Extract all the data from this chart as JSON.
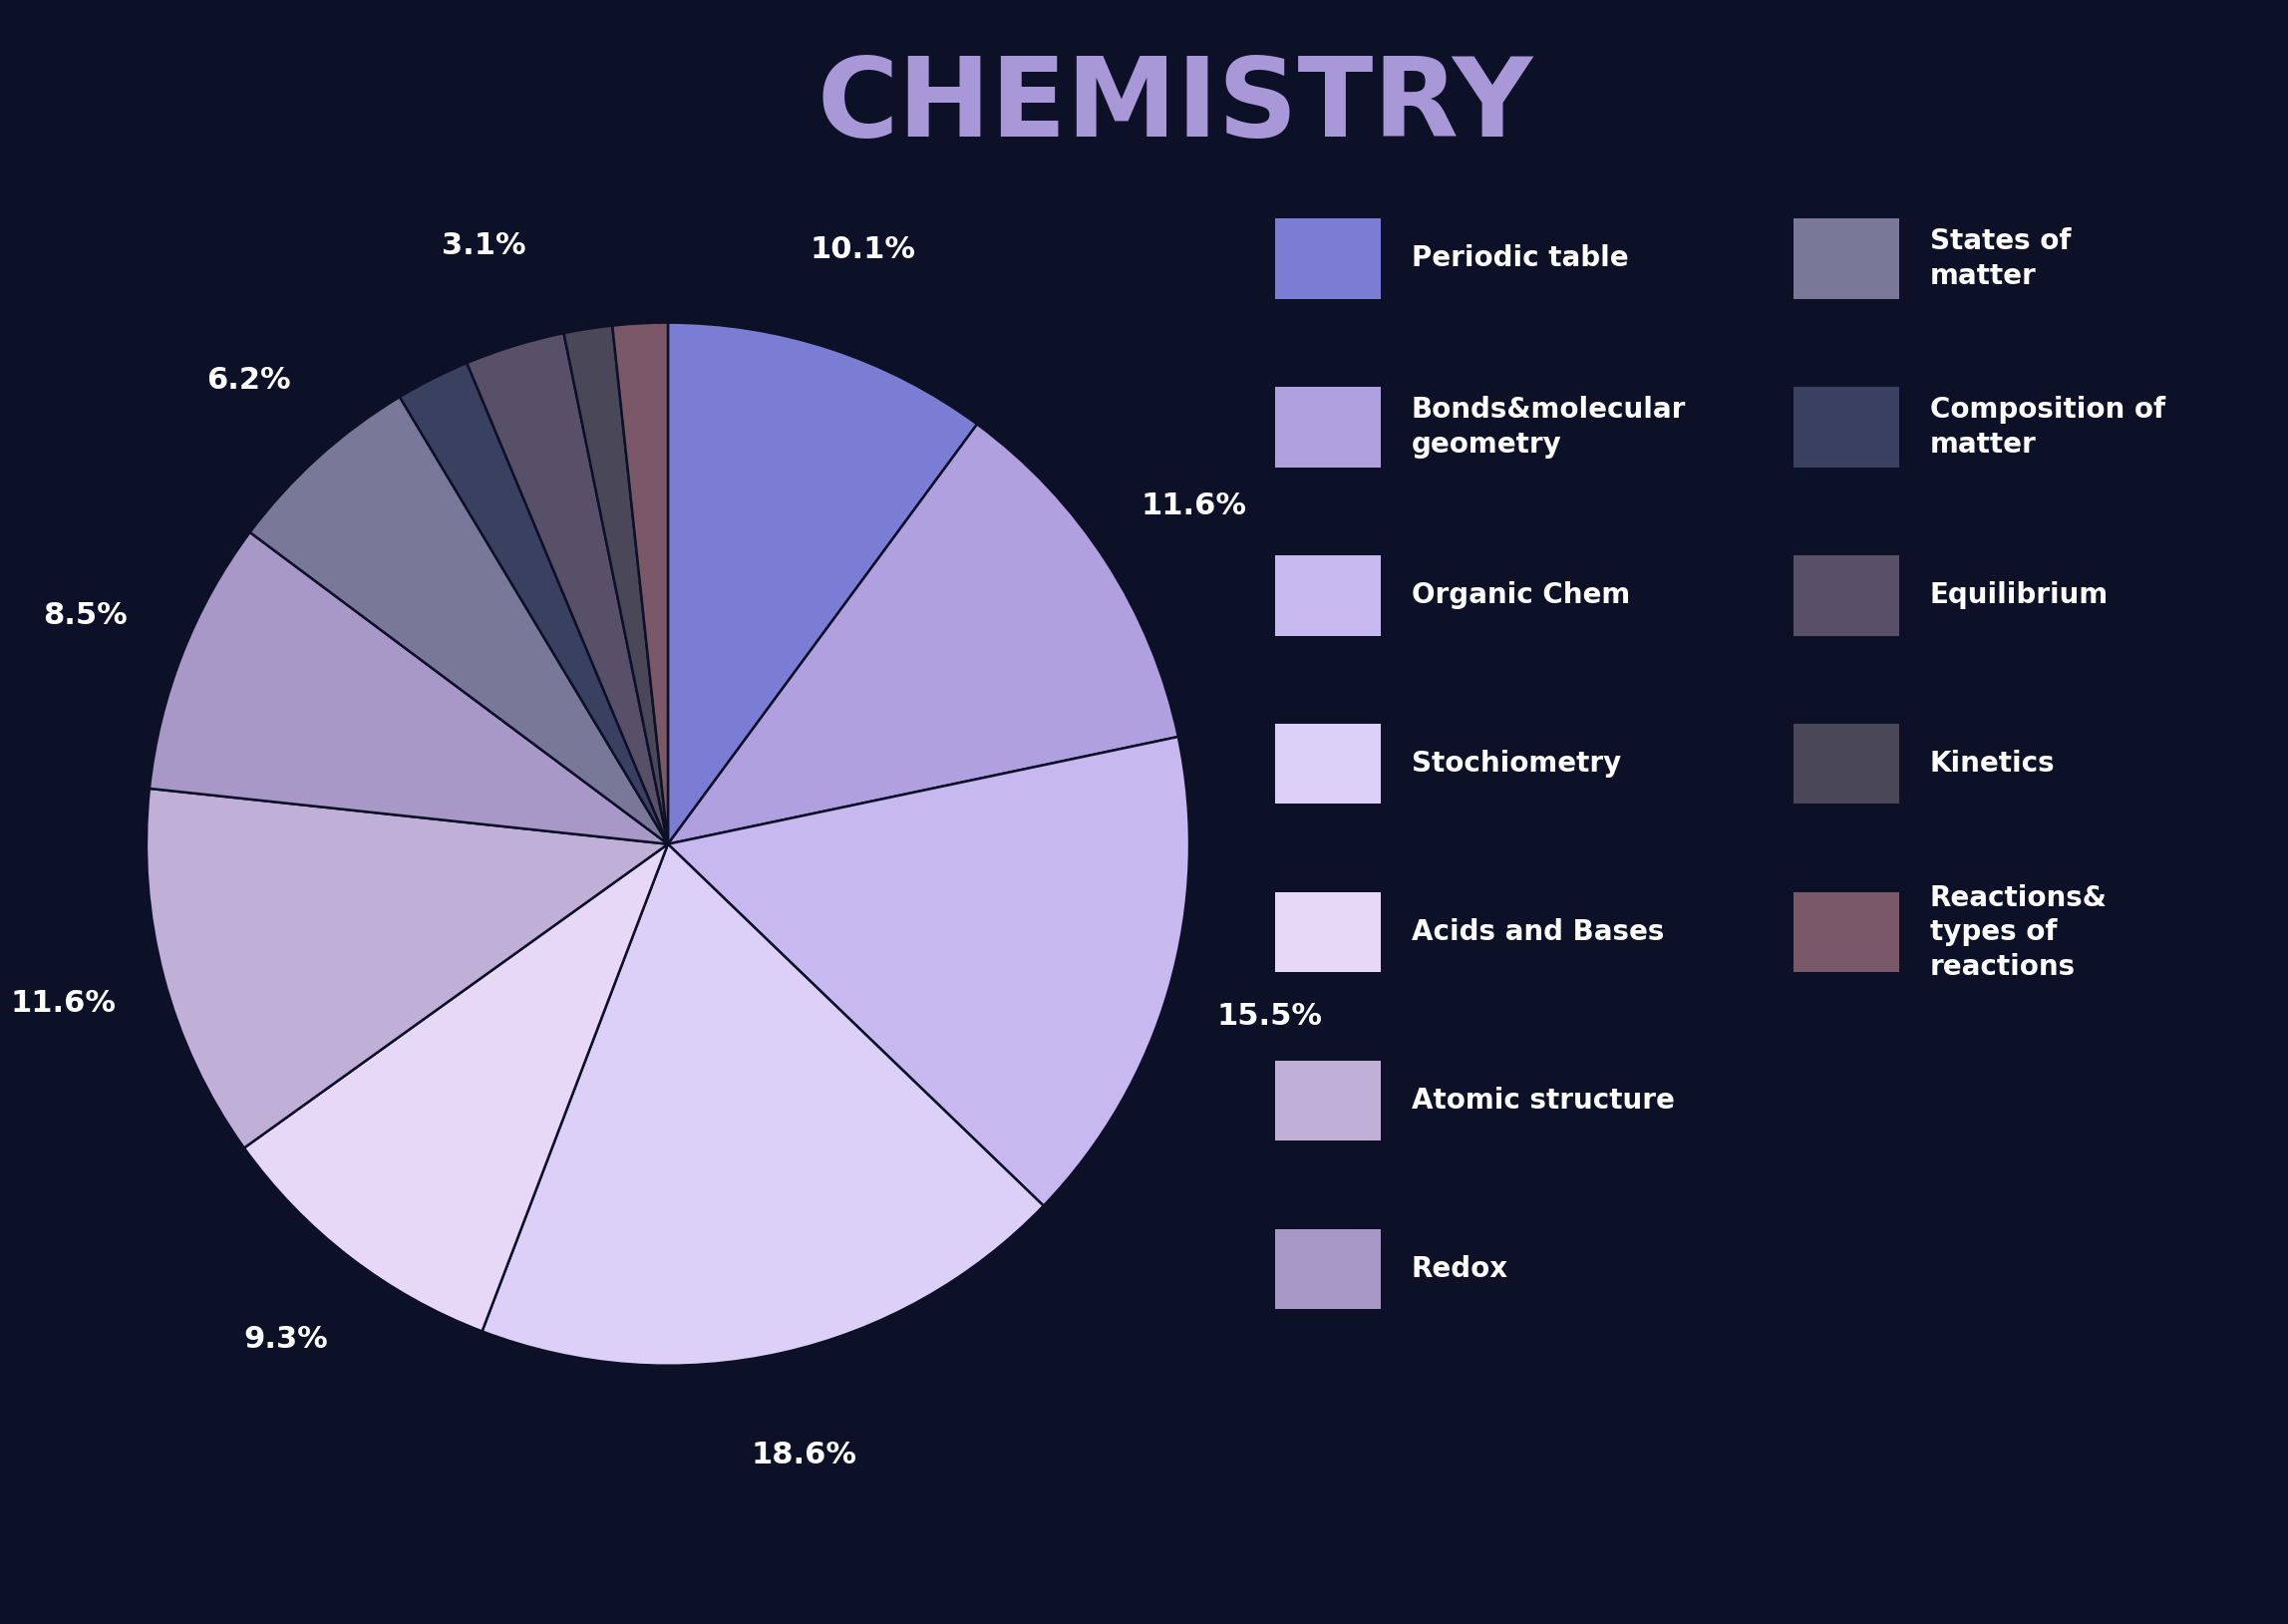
{
  "title": "CHEMISTRY",
  "background_color": "#0d1128",
  "title_color": "#a898d8",
  "slices": [
    {
      "label": "Periodic table",
      "pct": 10.1,
      "color": "#7b7dd4"
    },
    {
      "label": "Bonds&molecular geometry",
      "pct": 11.6,
      "color": "#b0a0e0"
    },
    {
      "label": "Organic Chem",
      "pct": 15.5,
      "color": "#c8b8f0"
    },
    {
      "label": "Stochiometry",
      "pct": 18.6,
      "color": "#ddd0f8"
    },
    {
      "label": "Acids and Bases",
      "pct": 9.3,
      "color": "#e8d8f8"
    },
    {
      "label": "Atomic structure",
      "pct": 11.6,
      "color": "#c0b0d8"
    },
    {
      "label": "Redox",
      "pct": 8.5,
      "color": "#a898c8"
    },
    {
      "label": "States of matter",
      "pct": 6.2,
      "color": "#7a7898"
    },
    {
      "label": "Composition of matter",
      "pct": 2.3,
      "color": "#3a4060"
    },
    {
      "label": "Equilibrium",
      "pct": 3.1,
      "color": "#585068"
    },
    {
      "label": "Kinetics",
      "pct": 1.5,
      "color": "#4a4858"
    },
    {
      "label": "Reactions& types of reactions",
      "pct": 1.7,
      "color": "#7a5868"
    }
  ],
  "legend_left": [
    {
      "label": "Periodic table",
      "color": "#7b7dd4"
    },
    {
      "label": "Bonds&molecular\ngeometry",
      "color": "#b0a0e0"
    },
    {
      "label": "Organic Chem",
      "color": "#c8b8f0"
    },
    {
      "label": "Stochiometry",
      "color": "#ddd0f8"
    },
    {
      "label": "Acids and Bases",
      "color": "#e8d8f8"
    },
    {
      "label": "Atomic structure",
      "color": "#c0b0d8"
    },
    {
      "label": "Redox",
      "color": "#a898c8"
    }
  ],
  "legend_right": [
    {
      "label": "States of\nmatter",
      "color": "#7a7898"
    },
    {
      "label": "Composition of\nmatter",
      "color": "#3a4060"
    },
    {
      "label": "Equilibrium",
      "color": "#585068"
    },
    {
      "label": "Kinetics",
      "color": "#4a4858"
    },
    {
      "label": "Reactions&\ntypes of\nreactions",
      "color": "#7a5868"
    }
  ],
  "pct_labels": [
    10.1,
    11.6,
    15.5,
    18.6,
    9.3,
    11.6,
    8.5,
    6.2,
    0,
    3.1,
    0,
    0
  ]
}
